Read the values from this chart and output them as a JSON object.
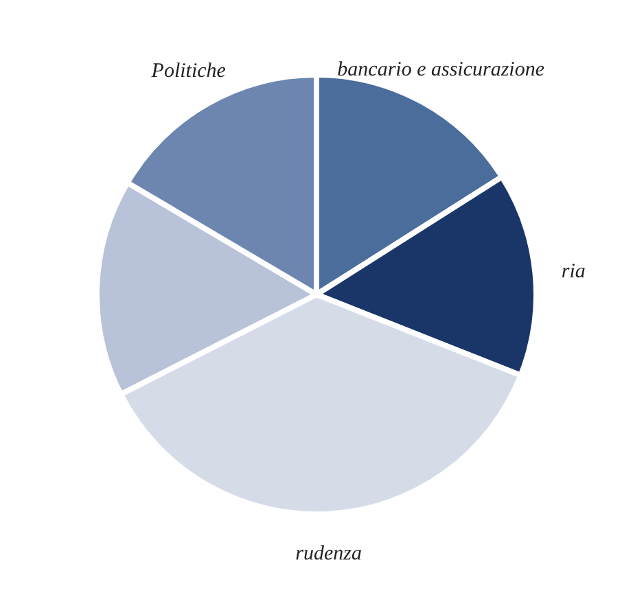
{
  "chart_data": {
    "type": "pie",
    "categories": [
      "bancario e assicurazione",
      "ria",
      "rudenza",
      null,
      "Politiche"
    ],
    "values": [
      16,
      15,
      36.5,
      16,
      16.5
    ],
    "colors": [
      "#4a6d9c",
      "#1a3668",
      "#d6dbe8",
      "#b8c2d8",
      "#6d86b0"
    ]
  }
}
